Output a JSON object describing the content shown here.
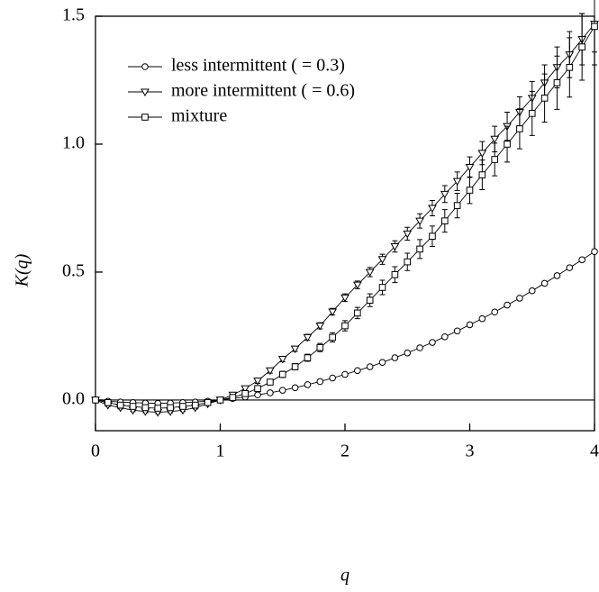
{
  "chart_data": {
    "type": "line",
    "x_label": "q",
    "y_label": "K(q)",
    "x": [
      0,
      0.1,
      0.2,
      0.3,
      0.4,
      0.5,
      0.6,
      0.7,
      0.8,
      0.9,
      1,
      1.1,
      1.2,
      1.3,
      1.4,
      1.5,
      1.6,
      1.7,
      1.8,
      1.9,
      2,
      2.1,
      2.2,
      2.3,
      2.4,
      2.5,
      2.6,
      2.7,
      2.8,
      2.9,
      3,
      3.1,
      3.2,
      3.3,
      3.4,
      3.5,
      3.6,
      3.7,
      3.8,
      3.9,
      4
    ],
    "series": [
      {
        "name": "less intermittent (  = 0.3)",
        "color": "#000000",
        "marker": "circle",
        "values": [
          0,
          -0.005,
          -0.008,
          -0.01,
          -0.012,
          -0.013,
          -0.012,
          -0.01,
          -0.008,
          -0.005,
          0,
          0.006,
          0.012,
          0.02,
          0.028,
          0.038,
          0.048,
          0.06,
          0.072,
          0.086,
          0.1,
          0.115,
          0.13,
          0.147,
          0.165,
          0.184,
          0.204,
          0.225,
          0.247,
          0.27,
          0.294,
          0.318,
          0.344,
          0.371,
          0.398,
          0.427,
          0.456,
          0.486,
          0.517,
          0.548,
          0.58
        ]
      },
      {
        "name": "more intermittent (  = 0.6)",
        "color": "#000000",
        "marker": "triangle",
        "values": [
          0,
          -0.02,
          -0.03,
          -0.04,
          -0.045,
          -0.048,
          -0.045,
          -0.04,
          -0.03,
          -0.015,
          0,
          0.02,
          0.045,
          0.075,
          0.115,
          0.16,
          0.2,
          0.245,
          0.29,
          0.345,
          0.4,
          0.45,
          0.5,
          0.55,
          0.6,
          0.65,
          0.7,
          0.75,
          0.805,
          0.855,
          0.91,
          0.965,
          1.02,
          1.07,
          1.125,
          1.18,
          1.24,
          1.3,
          1.35,
          1.41,
          1.47
        ],
        "errors": [
          0.005,
          0.005,
          0.005,
          0.005,
          0.005,
          0.005,
          0.005,
          0.005,
          0.005,
          0.005,
          0.005,
          0.008,
          0.008,
          0.01,
          0.01,
          0.01,
          0.01,
          0.012,
          0.012,
          0.013,
          0.015,
          0.015,
          0.018,
          0.02,
          0.022,
          0.025,
          0.028,
          0.03,
          0.033,
          0.036,
          0.04,
          0.045,
          0.05,
          0.055,
          0.06,
          0.065,
          0.07,
          0.08,
          0.09,
          0.1,
          0.11
        ]
      },
      {
        "name": "mixture",
        "color": "#000000",
        "marker": "square",
        "values": [
          0,
          -0.01,
          -0.02,
          -0.025,
          -0.03,
          -0.032,
          -0.03,
          -0.025,
          -0.02,
          -0.01,
          0,
          0.01,
          0.025,
          0.045,
          0.07,
          0.1,
          0.13,
          0.165,
          0.205,
          0.245,
          0.29,
          0.34,
          0.39,
          0.44,
          0.49,
          0.54,
          0.59,
          0.64,
          0.7,
          0.76,
          0.82,
          0.88,
          0.94,
          1.0,
          1.06,
          1.12,
          1.18,
          1.24,
          1.3,
          1.38,
          1.46
        ],
        "errors": [
          0.005,
          0.005,
          0.005,
          0.005,
          0.005,
          0.005,
          0.005,
          0.005,
          0.005,
          0.005,
          0.005,
          0.008,
          0.008,
          0.01,
          0.01,
          0.012,
          0.012,
          0.014,
          0.016,
          0.018,
          0.02,
          0.022,
          0.025,
          0.028,
          0.031,
          0.034,
          0.037,
          0.04,
          0.044,
          0.048,
          0.052,
          0.058,
          0.064,
          0.07,
          0.078,
          0.086,
          0.094,
          0.104,
          0.116,
          0.13,
          0.15
        ]
      }
    ],
    "xlim": [
      0,
      4
    ],
    "xticks": [
      0,
      1,
      2,
      3,
      4
    ],
    "ylim": [
      -0.12,
      1.5
    ],
    "yticks": [
      {
        "value": 0,
        "label": "0.0"
      },
      {
        "value": 0.5,
        "label": "0.5"
      },
      {
        "value": 1,
        "label": "1.0"
      },
      {
        "value": 1.5,
        "label": "1.5"
      }
    ],
    "zero_line": true,
    "legend": "upper left"
  }
}
